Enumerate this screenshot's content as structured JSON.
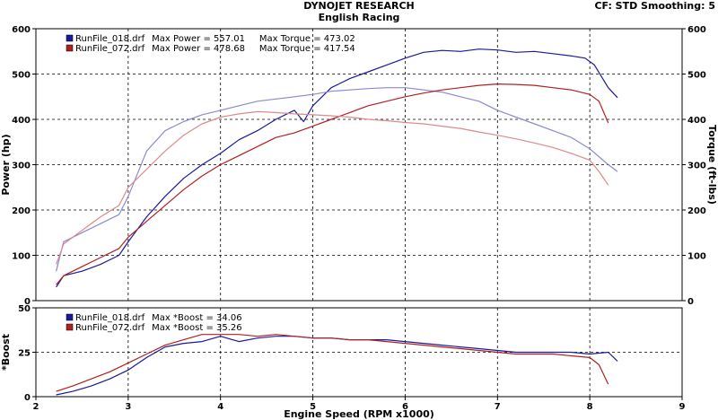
{
  "header": {
    "title": "DYNOJET RESEARCH",
    "subtitle": "English Racing",
    "settings": "CF: STD  Smoothing: 5"
  },
  "colors": {
    "run1_power": "#1a1a9a",
    "run1_torque": "#8a8ad0",
    "run2_power": "#b02020",
    "run2_torque": "#dc8a8a",
    "grid": "#000000"
  },
  "chart_data": [
    {
      "type": "line",
      "title": "",
      "xlabel": "Engine Speed (RPM x1000)",
      "ylabel": "Power (hp)",
      "ylabel_right": "Torque (ft-lbs)",
      "xlim": [
        2,
        9
      ],
      "ylim": [
        0,
        600
      ],
      "ylim_right": [
        0,
        600
      ],
      "x_ticks": [
        "2",
        "3",
        "4",
        "5",
        "6",
        "7",
        "8",
        "9"
      ],
      "y_ticks": [
        "0",
        "100",
        "200",
        "300",
        "400",
        "500",
        "600"
      ],
      "y_ticks_right": [
        "0",
        "100",
        "200",
        "300",
        "400",
        "500",
        "600"
      ],
      "grid": true,
      "legend_position": "top-left",
      "legend": [
        {
          "file": "RunFile_018.drf",
          "text": " Max Power = 557.01     Max Torque = 473.02"
        },
        {
          "file": "RunFile_072.drf",
          "text": " Max Power = 478.68     Max Torque = 417.54"
        }
      ],
      "series": [
        {
          "name": "RunFile_018.drf",
          "measure": "Power (hp)",
          "x": [
            2.22,
            2.3,
            2.5,
            2.7,
            2.9,
            3.0,
            3.2,
            3.4,
            3.6,
            3.8,
            4.0,
            4.2,
            4.4,
            4.6,
            4.8,
            4.9,
            5.0,
            5.2,
            5.4,
            5.6,
            5.8,
            6.0,
            6.2,
            6.4,
            6.6,
            6.8,
            7.0,
            7.2,
            7.4,
            7.6,
            7.8,
            7.95,
            8.05,
            8.2,
            8.3
          ],
          "values": [
            30,
            55,
            65,
            80,
            100,
            130,
            185,
            230,
            270,
            300,
            325,
            355,
            375,
            400,
            420,
            395,
            430,
            470,
            490,
            505,
            520,
            535,
            548,
            552,
            550,
            555,
            553,
            548,
            550,
            545,
            540,
            535,
            520,
            470,
            448
          ]
        },
        {
          "name": "RunFile_018.drf",
          "measure": "Torque (ft-lbs)",
          "x": [
            2.22,
            2.3,
            2.5,
            2.7,
            2.9,
            3.0,
            3.2,
            3.4,
            3.6,
            3.8,
            4.0,
            4.2,
            4.4,
            4.6,
            4.8,
            5.0,
            5.2,
            5.4,
            5.6,
            5.8,
            6.0,
            6.2,
            6.4,
            6.6,
            6.8,
            7.0,
            7.2,
            7.4,
            7.6,
            7.8,
            8.0,
            8.2,
            8.3
          ],
          "values": [
            65,
            130,
            150,
            170,
            190,
            230,
            330,
            375,
            395,
            410,
            420,
            430,
            440,
            445,
            450,
            455,
            462,
            465,
            468,
            470,
            470,
            465,
            460,
            450,
            440,
            420,
            405,
            390,
            375,
            360,
            335,
            300,
            285
          ]
        },
        {
          "name": "RunFile_072.drf",
          "measure": "Power (hp)",
          "x": [
            2.22,
            2.3,
            2.5,
            2.7,
            2.9,
            3.0,
            3.2,
            3.4,
            3.6,
            3.8,
            4.0,
            4.2,
            4.4,
            4.6,
            4.8,
            5.0,
            5.2,
            5.4,
            5.6,
            5.8,
            6.0,
            6.2,
            6.4,
            6.6,
            6.8,
            7.0,
            7.2,
            7.4,
            7.6,
            7.8,
            8.0,
            8.1,
            8.2
          ],
          "values": [
            35,
            55,
            75,
            95,
            115,
            140,
            175,
            210,
            245,
            275,
            300,
            320,
            340,
            360,
            370,
            385,
            400,
            415,
            430,
            440,
            450,
            458,
            465,
            470,
            475,
            478,
            477,
            475,
            470,
            465,
            455,
            440,
            392
          ]
        },
        {
          "name": "RunFile_072.drf",
          "measure": "Torque (ft-lbs)",
          "x": [
            2.22,
            2.3,
            2.5,
            2.7,
            2.9,
            3.0,
            3.2,
            3.4,
            3.6,
            3.8,
            4.0,
            4.2,
            4.4,
            4.6,
            4.8,
            5.0,
            5.2,
            5.4,
            5.6,
            5.8,
            6.0,
            6.2,
            6.4,
            6.6,
            6.8,
            7.0,
            7.2,
            7.4,
            7.6,
            7.8,
            8.0,
            8.1,
            8.2
          ],
          "values": [
            80,
            125,
            155,
            185,
            210,
            250,
            290,
            330,
            365,
            390,
            405,
            412,
            417,
            415,
            412,
            410,
            408,
            405,
            400,
            397,
            393,
            390,
            385,
            380,
            372,
            365,
            357,
            348,
            338,
            325,
            310,
            285,
            255
          ]
        }
      ]
    },
    {
      "type": "line",
      "title": "",
      "xlabel": "Engine Speed (RPM x1000)",
      "ylabel": "*Boost",
      "xlim": [
        2,
        9
      ],
      "ylim": [
        0,
        50
      ],
      "x_ticks": [
        "2",
        "3",
        "4",
        "5",
        "6",
        "7",
        "8",
        "9"
      ],
      "y_ticks": [
        "0",
        "25",
        "50"
      ],
      "grid": true,
      "legend_position": "top-left",
      "legend": [
        {
          "file": "RunFile_018.drf",
          "text": " Max *Boost = 34.06"
        },
        {
          "file": "RunFile_072.drf",
          "text": " Max *Boost = 35.26"
        }
      ],
      "series": [
        {
          "name": "RunFile_018.drf",
          "measure": "*Boost",
          "x": [
            2.22,
            2.4,
            2.6,
            2.8,
            3.0,
            3.2,
            3.4,
            3.6,
            3.8,
            4.0,
            4.2,
            4.4,
            4.6,
            4.8,
            5.0,
            5.2,
            5.4,
            5.6,
            5.8,
            6.0,
            6.2,
            6.4,
            6.6,
            6.8,
            7.0,
            7.2,
            7.4,
            7.6,
            7.8,
            8.0,
            8.2,
            8.3
          ],
          "values": [
            1,
            3,
            6,
            10,
            15,
            22,
            28,
            30,
            31,
            34,
            31,
            33,
            34,
            34,
            33,
            33,
            32,
            32,
            32,
            31,
            30,
            29,
            28,
            27,
            26,
            25,
            25,
            25,
            25,
            24,
            25,
            20
          ]
        },
        {
          "name": "RunFile_072.drf",
          "measure": "*Boost",
          "x": [
            2.22,
            2.4,
            2.6,
            2.8,
            3.0,
            3.2,
            3.4,
            3.6,
            3.8,
            4.0,
            4.2,
            4.4,
            4.6,
            4.8,
            5.0,
            5.2,
            5.4,
            5.6,
            5.8,
            6.0,
            6.2,
            6.4,
            6.6,
            6.8,
            7.0,
            7.2,
            7.4,
            7.6,
            7.8,
            8.0,
            8.1,
            8.2
          ],
          "values": [
            3,
            6,
            10,
            14,
            19,
            24,
            29,
            32,
            35,
            35,
            35,
            34,
            35,
            34,
            33,
            33,
            32,
            32,
            31,
            30,
            29,
            28,
            27,
            26,
            25,
            24,
            24,
            24,
            23,
            22,
            18,
            7
          ]
        }
      ]
    }
  ]
}
